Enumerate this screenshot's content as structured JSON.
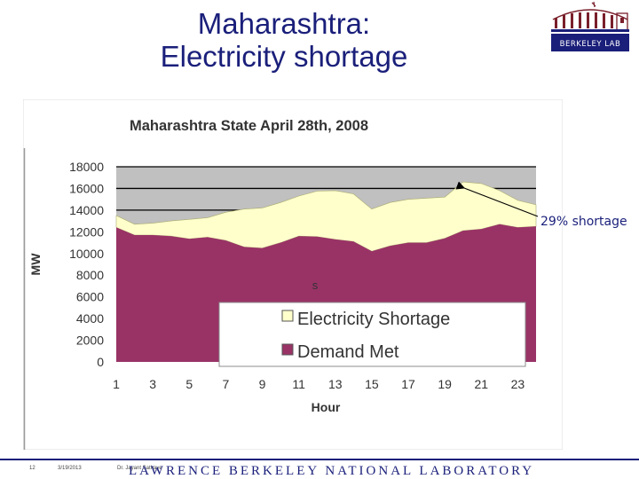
{
  "slide": {
    "title_line1": "Maharashtra:",
    "title_line2": "Electricity shortage",
    "annotation": "29% shortage",
    "stray_mark": "s"
  },
  "logo": {
    "text": "BERKELEY LAB"
  },
  "footer": {
    "page_number": "12",
    "date": "3/19/2013",
    "author": "Dr. Jayant Sathaye",
    "lab_name": "LAWRENCE BERKELEY NATIONAL LABORATORY"
  },
  "colors": {
    "title": "#1a1f7a",
    "demand_met": "#993366",
    "shortage": "#ffffcc",
    "plot_bg": "#c0c0c0"
  },
  "chart_data": {
    "type": "area",
    "stacked": true,
    "title": "Maharashtra State April 28th, 2008",
    "xlabel": "Hour",
    "ylabel": "MW",
    "ylim": [
      0,
      18000
    ],
    "yticks": [
      0,
      2000,
      4000,
      6000,
      8000,
      10000,
      12000,
      14000,
      16000,
      18000
    ],
    "xticks": [
      1,
      3,
      5,
      7,
      9,
      11,
      13,
      15,
      17,
      19,
      21,
      23
    ],
    "x": [
      1,
      2,
      3,
      4,
      5,
      6,
      7,
      8,
      9,
      10,
      11,
      12,
      13,
      14,
      15,
      16,
      17,
      18,
      19,
      20,
      21,
      22,
      23,
      24
    ],
    "grid": "horizontal",
    "legend_position": "bottom-right",
    "series": [
      {
        "name": "Demand Met",
        "values": [
          12400,
          11700,
          11700,
          11600,
          11350,
          11500,
          11200,
          10600,
          10500,
          11000,
          11600,
          11550,
          11300,
          11100,
          10200,
          10700,
          11000,
          11000,
          11400,
          12100,
          12250,
          12700,
          12400,
          12500
        ]
      },
      {
        "name": "Electricity Shortage",
        "values": [
          1100,
          1000,
          1100,
          1400,
          1800,
          1800,
          2600,
          3500,
          3700,
          3700,
          3700,
          4200,
          4500,
          4400,
          3900,
          4000,
          4000,
          4100,
          3800,
          4500,
          4200,
          3100,
          2500,
          2000
        ]
      }
    ]
  }
}
